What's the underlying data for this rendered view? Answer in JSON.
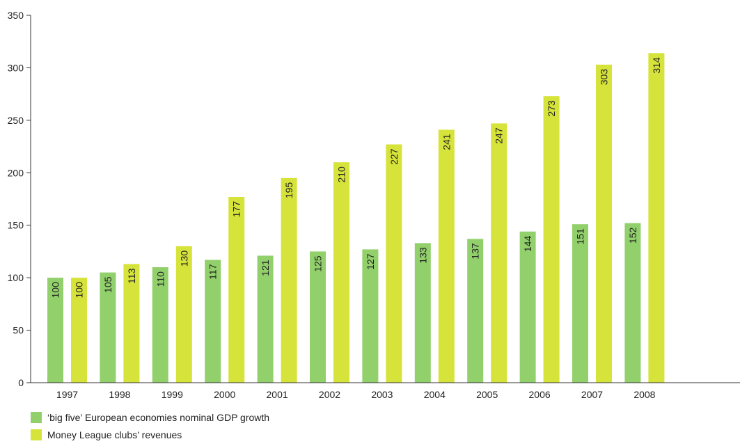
{
  "chart_data": {
    "type": "bar",
    "categories": [
      "1997",
      "1998",
      "1999",
      "2000",
      "2001",
      "2002",
      "2003",
      "2004",
      "2005",
      "2006",
      "2007",
      "2008"
    ],
    "series": [
      {
        "name": "‘big five’ European economies nominal GDP growth",
        "values": [
          100,
          105,
          110,
          117,
          121,
          125,
          127,
          133,
          137,
          144,
          151,
          152
        ],
        "color": "#92d06c"
      },
      {
        "name": "Money League clubs’ revenues",
        "values": [
          100,
          113,
          130,
          177,
          195,
          210,
          227,
          241,
          247,
          273,
          303,
          314
        ],
        "color": "#d6e33a"
      }
    ],
    "yticks": [
      "0",
      "50",
      "100",
      "150",
      "200",
      "250",
      "300",
      "350"
    ],
    "ylim": [
      0,
      350
    ],
    "grid": false,
    "data_labels": "inside bars, rotated vertical",
    "legend": "bottom-left"
  }
}
